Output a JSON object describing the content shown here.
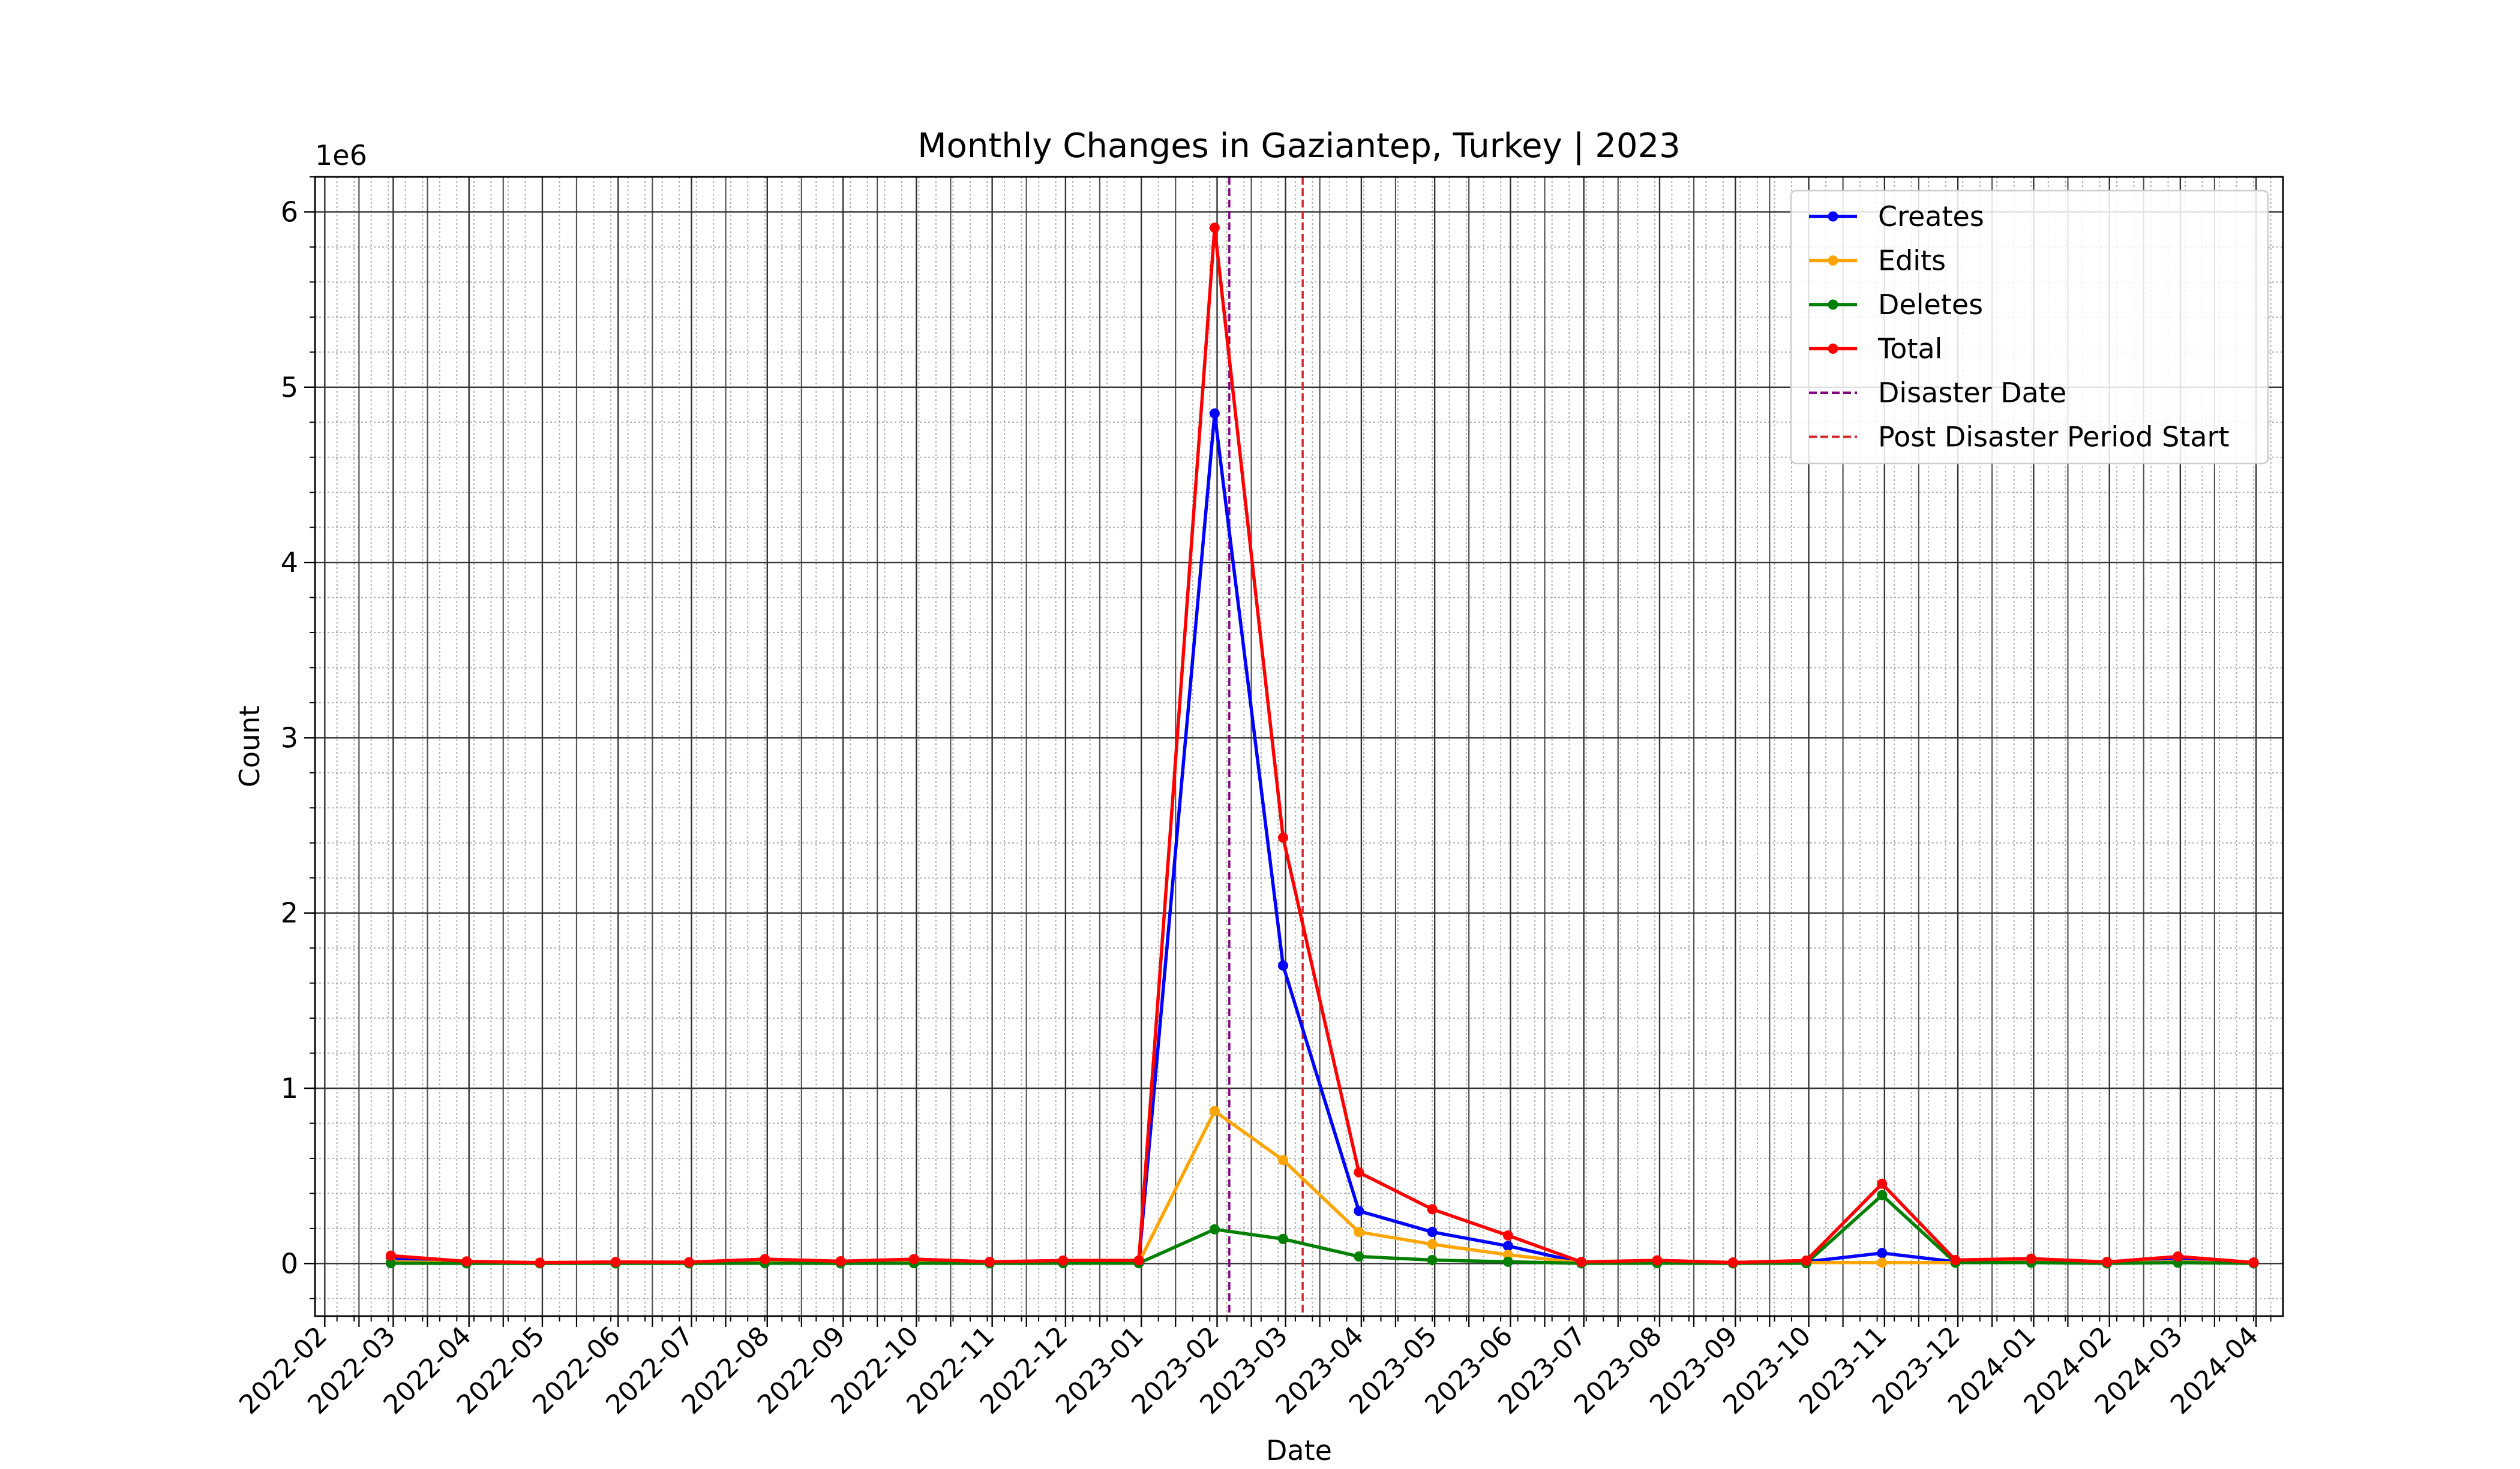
{
  "chart_data": {
    "type": "line",
    "title": "Monthly Changes in Gaziantep, Turkey | 2023",
    "xlabel": "Date",
    "ylabel": "Count",
    "y_multiplier_label": "1e6",
    "y_scale": 1000000,
    "xlim": [
      "2022-01-28",
      "2024-04-12"
    ],
    "ylim": [
      -300000,
      6200000
    ],
    "x_tick_labels": [
      "2022-02",
      "2022-03",
      "2022-04",
      "2022-05",
      "2022-06",
      "2022-07",
      "2022-08",
      "2022-09",
      "2022-10",
      "2022-11",
      "2022-12",
      "2023-01",
      "2023-02",
      "2023-03",
      "2023-04",
      "2023-05",
      "2023-06",
      "2023-07",
      "2023-08",
      "2023-09",
      "2023-10",
      "2023-11",
      "2023-12",
      "2024-01",
      "2024-02",
      "2024-03",
      "2024-04"
    ],
    "y_ticks": [
      0,
      1000000,
      2000000,
      3000000,
      4000000,
      5000000,
      6000000
    ],
    "y_tick_labels": [
      "0",
      "1",
      "2",
      "3",
      "4",
      "5",
      "6"
    ],
    "grid": "major and minor",
    "legend_position": "top-right",
    "x": [
      "2022-02-28",
      "2022-03-31",
      "2022-04-30",
      "2022-05-31",
      "2022-06-30",
      "2022-07-31",
      "2022-08-31",
      "2022-09-30",
      "2022-10-31",
      "2022-11-30",
      "2022-12-31",
      "2023-01-31",
      "2023-02-28",
      "2023-03-31",
      "2023-04-30",
      "2023-05-31",
      "2023-06-30",
      "2023-07-31",
      "2023-08-31",
      "2023-09-30",
      "2023-10-31",
      "2023-11-30",
      "2023-12-31",
      "2024-01-31",
      "2024-02-29",
      "2024-03-31"
    ],
    "series": [
      {
        "name": "Creates",
        "color": "#0000ff",
        "values": [
          30000,
          8000,
          3000,
          5000,
          4000,
          15000,
          8000,
          15000,
          6000,
          10000,
          10000,
          4850000,
          1700000,
          300000,
          180000,
          100000,
          5000,
          10000,
          3000,
          10000,
          60000,
          10000,
          15000,
          5000,
          25000,
          3000
        ]
      },
      {
        "name": "Edits",
        "color": "#ffa500",
        "values": [
          10000,
          4000,
          2000,
          3000,
          3000,
          8000,
          4000,
          8000,
          3000,
          5000,
          6000,
          870000,
          590000,
          180000,
          110000,
          50000,
          3000,
          6000,
          2000,
          5000,
          5000,
          5000,
          8000,
          3000,
          10000,
          2000
        ]
      },
      {
        "name": "Deletes",
        "color": "#008000",
        "values": [
          2000,
          1000,
          1000,
          1000,
          1000,
          2000,
          1000,
          2000,
          1000,
          2000,
          2000,
          195000,
          140000,
          40000,
          20000,
          10000,
          1000,
          2000,
          1000,
          2000,
          390000,
          5000,
          5000,
          1000,
          5000,
          1000
        ]
      },
      {
        "name": "Total",
        "color": "#ff0000",
        "values": [
          45000,
          12000,
          5000,
          9000,
          8000,
          25000,
          13000,
          25000,
          10000,
          17000,
          18000,
          5910000,
          2430000,
          520000,
          310000,
          160000,
          9000,
          18000,
          6000,
          17000,
          455000,
          20000,
          28000,
          9000,
          40000,
          6000
        ]
      }
    ],
    "vlines": [
      {
        "name": "Disaster Date",
        "date": "2023-02-06",
        "color": "#800080"
      },
      {
        "name": "Post Disaster Period Start",
        "date": "2023-03-08",
        "color": "#d62728"
      }
    ]
  }
}
